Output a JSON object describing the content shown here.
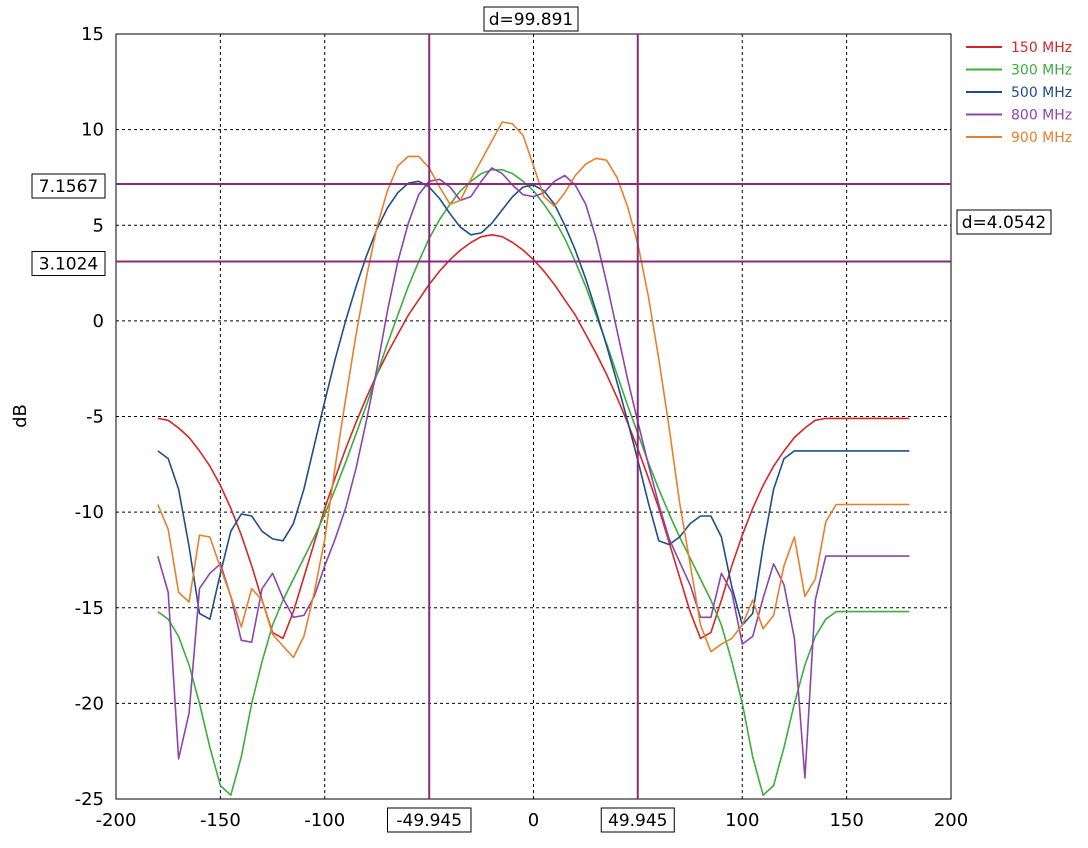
{
  "chart_data": {
    "type": "line",
    "title": "",
    "xlabel": "",
    "ylabel": "dB",
    "xlim": [
      -200,
      200
    ],
    "ylim": [
      -25,
      15
    ],
    "xticks": [
      -200,
      -150,
      -100,
      -50,
      0,
      50,
      100,
      150,
      200
    ],
    "yticks": [
      15,
      10,
      5,
      0,
      -5,
      -10,
      -15,
      -20,
      -25
    ],
    "grid": true,
    "legend_position": "top-right",
    "x": [
      -180,
      -175,
      -170,
      -165,
      -160,
      -155,
      -150,
      -145,
      -140,
      -135,
      -130,
      -125,
      -120,
      -115,
      -110,
      -105,
      -100,
      -95,
      -90,
      -85,
      -80,
      -75,
      -70,
      -65,
      -60,
      -55,
      -50,
      -45,
      -40,
      -35,
      -30,
      -25,
      -20,
      -15,
      -10,
      -5,
      0,
      5,
      10,
      15,
      20,
      25,
      30,
      35,
      40,
      45,
      50,
      55,
      60,
      65,
      70,
      75,
      80,
      85,
      90,
      95,
      100,
      105,
      110,
      115,
      120,
      125,
      130,
      135,
      140,
      145,
      150,
      155,
      160,
      165,
      170,
      175,
      180
    ],
    "series": [
      {
        "name": "150 MHz",
        "color": "#d62728",
        "values": [
          -5.1,
          -5.2,
          -5.6,
          -6.1,
          -6.8,
          -7.6,
          -8.6,
          -9.8,
          -11.2,
          -12.8,
          -14.6,
          -16.3,
          -16.6,
          -15.2,
          -13.4,
          -11.6,
          -9.8,
          -8.2,
          -6.7,
          -5.3,
          -4.0,
          -2.8,
          -1.7,
          -0.7,
          0.3,
          1.1,
          1.9,
          2.6,
          3.2,
          3.7,
          4.1,
          4.4,
          4.5,
          4.4,
          4.1,
          3.7,
          3.2,
          2.6,
          1.9,
          1.1,
          0.3,
          -0.7,
          -1.7,
          -2.8,
          -4.0,
          -5.3,
          -6.7,
          -8.2,
          -9.8,
          -11.6,
          -13.4,
          -15.2,
          -16.6,
          -16.3,
          -14.6,
          -12.8,
          -11.2,
          -9.8,
          -8.6,
          -7.6,
          -6.8,
          -6.1,
          -5.6,
          -5.2,
          -5.1,
          -5.1,
          -5.1,
          -5.1,
          -5.1,
          -5.1,
          -5.1,
          -5.1,
          -5.1
        ]
      },
      {
        "name": "300 MHz",
        "color": "#3cae3c",
        "values": [
          -15.2,
          -15.6,
          -16.5,
          -18.0,
          -20.0,
          -22.3,
          -24.3,
          -24.8,
          -22.8,
          -20.0,
          -17.8,
          -15.9,
          -14.6,
          -13.5,
          -12.4,
          -11.3,
          -10.1,
          -8.8,
          -7.4,
          -5.9,
          -4.4,
          -2.8,
          -1.2,
          0.3,
          1.8,
          3.1,
          4.3,
          5.3,
          6.1,
          6.8,
          7.3,
          7.7,
          7.9,
          7.9,
          7.7,
          7.3,
          6.8,
          6.1,
          5.3,
          4.3,
          3.1,
          1.8,
          0.3,
          -1.2,
          -2.8,
          -4.4,
          -5.9,
          -7.4,
          -8.8,
          -10.1,
          -11.3,
          -12.4,
          -13.5,
          -14.6,
          -15.9,
          -17.8,
          -20.0,
          -22.8,
          -24.8,
          -24.3,
          -22.3,
          -20.0,
          -18.0,
          -16.5,
          -15.6,
          -15.2,
          -15.2,
          -15.2,
          -15.2,
          -15.2,
          -15.2,
          -15.2,
          -15.2
        ]
      },
      {
        "name": "500 MHz",
        "color": "#1f4e8c",
        "values": [
          -6.8,
          -7.2,
          -8.8,
          -11.8,
          -15.3,
          -15.6,
          -13.2,
          -11.0,
          -10.1,
          -10.2,
          -11.0,
          -11.4,
          -11.5,
          -10.6,
          -8.8,
          -6.5,
          -4.2,
          -2.0,
          0.0,
          1.8,
          3.4,
          4.8,
          5.9,
          6.7,
          7.2,
          7.3,
          7.0,
          6.4,
          5.6,
          4.9,
          4.5,
          4.6,
          5.1,
          5.8,
          6.5,
          7.0,
          7.1,
          6.8,
          6.1,
          5.0,
          3.7,
          2.2,
          0.5,
          -1.3,
          -3.2,
          -5.2,
          -7.3,
          -9.5,
          -11.5,
          -11.7,
          -11.3,
          -10.6,
          -10.2,
          -10.2,
          -11.3,
          -13.9,
          -15.9,
          -15.3,
          -11.8,
          -8.8,
          -7.2,
          -6.8,
          -6.8,
          -6.8,
          -6.8,
          -6.8,
          -6.8,
          -6.8,
          -6.8,
          -6.8,
          -6.8,
          -6.8,
          -6.8
        ]
      },
      {
        "name": "800 MHz",
        "color": "#8e44ad",
        "values": [
          -12.3,
          -14.2,
          -22.9,
          -20.5,
          -14.0,
          -13.2,
          -12.7,
          -14.4,
          -16.7,
          -16.8,
          -14.0,
          -13.2,
          -14.5,
          -15.5,
          -15.4,
          -14.4,
          -12.8,
          -11.4,
          -9.8,
          -7.7,
          -5.2,
          -2.5,
          0.5,
          3.1,
          5.1,
          6.6,
          7.3,
          7.4,
          7.0,
          6.3,
          6.5,
          7.3,
          8.0,
          7.7,
          7.1,
          6.6,
          6.5,
          6.7,
          7.3,
          7.6,
          7.1,
          6.1,
          4.3,
          2.0,
          -0.5,
          -3.0,
          -5.3,
          -7.5,
          -9.6,
          -11.4,
          -12.6,
          -13.8,
          -15.5,
          -15.5,
          -13.2,
          -14.2,
          -16.9,
          -16.5,
          -14.5,
          -12.7,
          -13.8,
          -16.6,
          -23.9,
          -14.6,
          -12.3,
          -12.3,
          -12.3,
          -12.3,
          -12.3,
          -12.3,
          -12.3,
          -12.3,
          -12.3
        ]
      },
      {
        "name": "900 MHz",
        "color": "#e8802a",
        "values": [
          -9.6,
          -10.9,
          -14.2,
          -14.7,
          -11.2,
          -11.3,
          -12.9,
          -14.4,
          -16.0,
          -14.0,
          -14.6,
          -16.4,
          -17.0,
          -17.6,
          -16.5,
          -14.2,
          -11.4,
          -7.6,
          -4.1,
          -0.7,
          2.3,
          4.9,
          6.8,
          8.1,
          8.6,
          8.6,
          8.0,
          7.0,
          6.1,
          6.3,
          7.4,
          8.4,
          9.4,
          10.4,
          10.3,
          9.7,
          8.1,
          6.5,
          6.0,
          6.7,
          7.6,
          8.2,
          8.5,
          8.4,
          7.5,
          6.0,
          4.0,
          1.3,
          -2.0,
          -5.6,
          -9.5,
          -12.7,
          -15.9,
          -17.3,
          -16.9,
          -16.6,
          -15.9,
          -14.6,
          -16.1,
          -15.4,
          -12.8,
          -11.3,
          -14.4,
          -13.5,
          -10.5,
          -9.6,
          -9.6,
          -9.6,
          -9.6,
          -9.6,
          -9.6,
          -9.6,
          -9.6
        ]
      }
    ],
    "markers": {
      "vertical": [
        -49.945,
        49.945
      ],
      "horizontal": [
        7.1567,
        3.1024
      ],
      "vertical_labels": [
        "-49.945",
        "49.945"
      ],
      "horizontal_labels": [
        "7.1567",
        "3.1024"
      ],
      "dx_label": "d=99.891",
      "dy_label": "d=4.0542",
      "color": "#8b2a78"
    }
  }
}
